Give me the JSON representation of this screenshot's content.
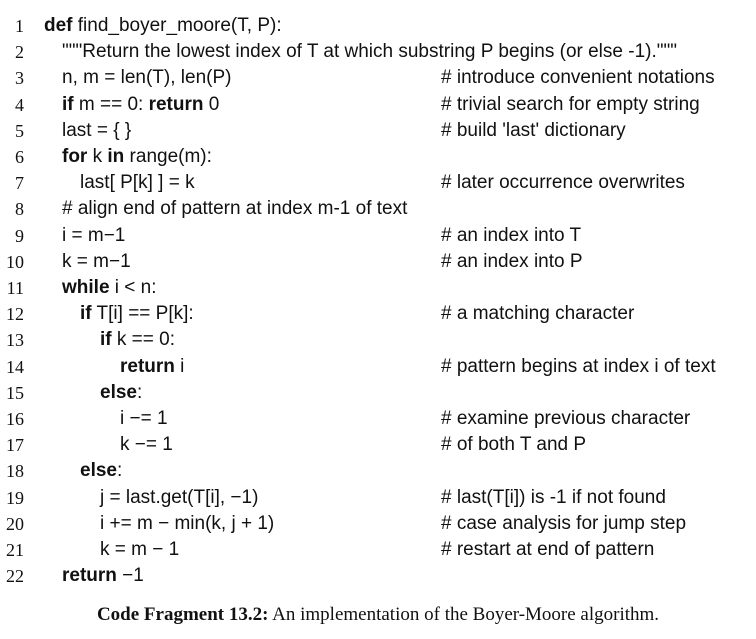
{
  "lines": [
    {
      "n": "1",
      "code": [
        {
          "k": "def"
        },
        {
          "t": " find_boyer_moore(T, P):"
        }
      ],
      "comment": ""
    },
    {
      "n": "2",
      "code": [
        {
          "t": "\"\"\"Return the lowest index of T at which substring P begins (or else -1).\"\"\""
        }
      ],
      "comment": ""
    },
    {
      "n": "3",
      "code": [
        {
          "t": "n, m = len(T), len(P)"
        }
      ],
      "comment": "# introduce convenient notations"
    },
    {
      "n": "4",
      "code": [
        {
          "k": "if"
        },
        {
          "t": " m == 0: "
        },
        {
          "k": "return"
        },
        {
          "t": " 0"
        }
      ],
      "comment": "# trivial search for empty string"
    },
    {
      "n": "5",
      "code": [
        {
          "t": "last = { }"
        }
      ],
      "comment": "# build 'last' dictionary"
    },
    {
      "n": "6",
      "code": [
        {
          "k": "for"
        },
        {
          "t": " k "
        },
        {
          "k": "in"
        },
        {
          "t": " range(m):"
        }
      ],
      "comment": ""
    },
    {
      "n": "7",
      "code": [
        {
          "t": "last[ P[k] ] = k"
        }
      ],
      "comment": "# later occurrence overwrites"
    },
    {
      "n": "8",
      "code": [
        {
          "t": "# align end of pattern at index m-1 of text"
        }
      ],
      "comment": ""
    },
    {
      "n": "9",
      "code": [
        {
          "t": "i = m−1"
        }
      ],
      "comment": "# an index into T"
    },
    {
      "n": "10",
      "code": [
        {
          "t": "k = m−1"
        }
      ],
      "comment": "# an index into P"
    },
    {
      "n": "11",
      "code": [
        {
          "k": "while"
        },
        {
          "t": " i < n:"
        }
      ],
      "comment": ""
    },
    {
      "n": "12",
      "code": [
        {
          "k": "if"
        },
        {
          "t": " T[i] == P[k]:"
        }
      ],
      "comment": "# a matching character"
    },
    {
      "n": "13",
      "code": [
        {
          "k": "if"
        },
        {
          "t": " k == 0:"
        }
      ],
      "comment": ""
    },
    {
      "n": "14",
      "code": [
        {
          "k": "return"
        },
        {
          "t": " i"
        }
      ],
      "comment": "# pattern begins at index i of text"
    },
    {
      "n": "15",
      "code": [
        {
          "k": "else"
        },
        {
          "t": ":"
        }
      ],
      "comment": ""
    },
    {
      "n": "16",
      "code": [
        {
          "t": "i −= 1"
        }
      ],
      "comment": "# examine previous character"
    },
    {
      "n": "17",
      "code": [
        {
          "t": "k −= 1"
        }
      ],
      "comment": "# of both T and P"
    },
    {
      "n": "18",
      "code": [
        {
          "k": "else"
        },
        {
          "t": ":"
        }
      ],
      "comment": ""
    },
    {
      "n": "19",
      "code": [
        {
          "t": "j = last.get(T[i], −1)"
        }
      ],
      "comment": "# last(T[i]) is -1 if not found"
    },
    {
      "n": "20",
      "code": [
        {
          "t": "i += m − min(k, j + 1)"
        }
      ],
      "comment": "# case analysis for jump step"
    },
    {
      "n": "21",
      "code": [
        {
          "t": "k = m − 1"
        }
      ],
      "comment": "# restart at end of pattern"
    },
    {
      "n": "22",
      "code": [
        {
          "k": "return"
        },
        {
          "t": " −1"
        }
      ],
      "comment": ""
    }
  ],
  "caption": {
    "label": "Code Fragment 13.2:",
    "text": " An implementation of the Boyer-Moore algorithm."
  }
}
